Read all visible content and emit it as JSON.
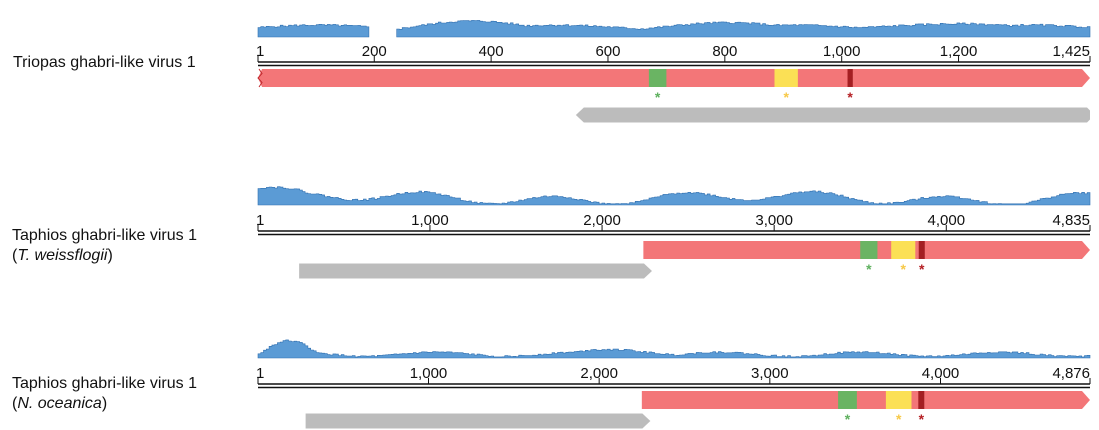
{
  "genomes": [
    {
      "name_line1": "Triopas ghabri-like virus 1",
      "name_line2": "",
      "species_prefix": "",
      "species_suffix": "",
      "length": 1425,
      "ticks": [
        {
          "value": 1,
          "label": "1"
        },
        {
          "value": 200,
          "label": "200"
        },
        {
          "value": 400,
          "label": "400"
        },
        {
          "value": 600,
          "label": "600"
        },
        {
          "value": 800,
          "label": "800"
        },
        {
          "value": 1000,
          "label": "1,000"
        },
        {
          "value": 1200,
          "label": "1,200"
        },
        {
          "value": 1425,
          "label": "1,425"
        }
      ],
      "coverage_gaps": [
        [
          190,
          235
        ]
      ],
      "orfs": [
        {
          "type": "main",
          "strand": "+",
          "start": 1,
          "end": 1425,
          "color": "#f37678",
          "truncated_left": true,
          "motifs": [
            {
              "start": 670,
              "end": 700,
              "color": "#6ab463",
              "star_color": "#5fb15f",
              "star": "*"
            },
            {
              "start": 885,
              "end": 925,
              "color": "#fbe055",
              "star_color": "#f7c948",
              "star": "*"
            },
            {
              "start": 1010,
              "end": 1019,
              "color": "#a41f22",
              "star_color": "#b51f24",
              "star": "*"
            }
          ]
        },
        {
          "type": "other",
          "strand": "-",
          "start": 545,
          "end": 1425,
          "color": "#bcbcbc"
        }
      ]
    },
    {
      "name_line1": "Taphios ghabri-like virus 1",
      "name_line2": "",
      "species_prefix": "(",
      "species": "T. weissflogii",
      "species_suffix": ")",
      "length": 4835,
      "ticks": [
        {
          "value": 1,
          "label": "1"
        },
        {
          "value": 1000,
          "label": "1,000"
        },
        {
          "value": 2000,
          "label": "2,000"
        },
        {
          "value": 3000,
          "label": "3,000"
        },
        {
          "value": 4000,
          "label": "4,000"
        },
        {
          "value": 4835,
          "label": "4,835"
        }
      ],
      "coverage_gaps": [],
      "orfs": [
        {
          "type": "main",
          "strand": "+",
          "start": 2240,
          "end": 4835,
          "color": "#f37678",
          "truncated_left": false,
          "motifs": [
            {
              "start": 3500,
              "end": 3600,
              "color": "#6ab463",
              "star_color": "#5fb15f",
              "star": "*"
            },
            {
              "start": 3680,
              "end": 3820,
              "color": "#fbe055",
              "star_color": "#f7c948",
              "star": "*"
            },
            {
              "start": 3840,
              "end": 3875,
              "color": "#a41f22",
              "star_color": "#b51f24",
              "star": "*"
            }
          ]
        },
        {
          "type": "other",
          "strand": "+",
          "start": 240,
          "end": 2290,
          "color": "#bcbcbc"
        }
      ]
    },
    {
      "name_line1": "Taphios ghabri-like virus 1",
      "name_line2": "",
      "species_prefix": "(",
      "species": "N. oceanica",
      "species_suffix": ")",
      "length": 4876,
      "ticks": [
        {
          "value": 1,
          "label": "1"
        },
        {
          "value": 1000,
          "label": "1,000"
        },
        {
          "value": 2000,
          "label": "2,000"
        },
        {
          "value": 3000,
          "label": "3,000"
        },
        {
          "value": 4000,
          "label": "4,000"
        },
        {
          "value": 4876,
          "label": "4,876"
        }
      ],
      "coverage_gaps": [],
      "orfs": [
        {
          "type": "main",
          "strand": "+",
          "start": 2250,
          "end": 4876,
          "color": "#f37678",
          "truncated_left": false,
          "motifs": [
            {
              "start": 3400,
              "end": 3510,
              "color": "#6ab463",
              "star_color": "#5fb15f",
              "star": "*"
            },
            {
              "start": 3680,
              "end": 3830,
              "color": "#fbe055",
              "star_color": "#f7c948",
              "star": "*"
            },
            {
              "start": 3870,
              "end": 3905,
              "color": "#a41f22",
              "star_color": "#b51f24",
              "star": "*"
            }
          ]
        },
        {
          "type": "other",
          "strand": "+",
          "start": 280,
          "end": 2300,
          "color": "#bcbcbc"
        }
      ]
    }
  ],
  "colors": {
    "coverage_fill": "#5b9bd5",
    "coverage_stroke": "#2f6fb0",
    "ruler": "#111111"
  }
}
